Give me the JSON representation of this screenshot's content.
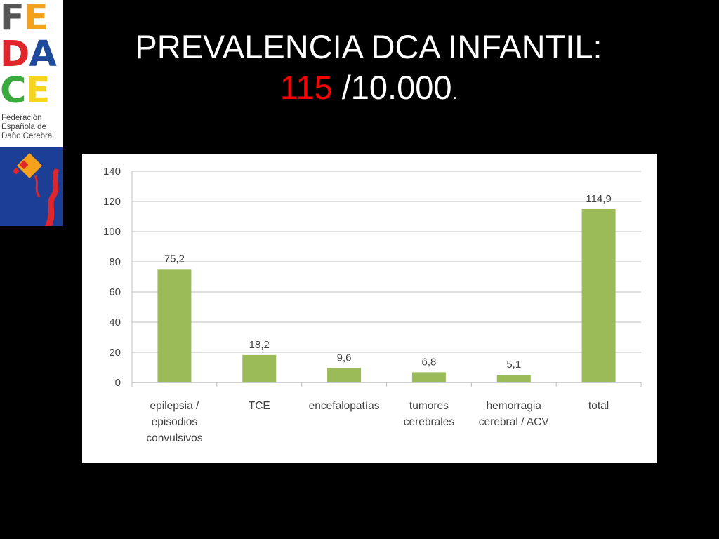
{
  "logo": {
    "letters": [
      [
        {
          "ch": "F",
          "color": "#555555"
        },
        {
          "ch": "E",
          "color": "#f4a21c"
        }
      ],
      [
        {
          "ch": "D",
          "color": "#e0262b"
        },
        {
          "ch": "A",
          "color": "#1e4a9c"
        }
      ],
      [
        {
          "ch": "C",
          "color": "#3aaa3f"
        },
        {
          "ch": "E",
          "color": "#f5d61c"
        }
      ]
    ],
    "subtitle": [
      "Federación",
      "Española de",
      "Daño Cerebral"
    ]
  },
  "title": {
    "line1": "PREVALENCIA DCA INFANTIL:",
    "highlight": "115",
    "line2_rest": " /10.000",
    "line2_end": "."
  },
  "colors": {
    "bar": "#9bbb59",
    "grid": "#bfbfbf",
    "text": "#404040",
    "highlight": "#ff0000"
  },
  "chart_data": {
    "type": "bar",
    "categories": [
      [
        "epilepsia /",
        "episodios",
        "convulsivos"
      ],
      [
        "TCE"
      ],
      [
        "encefalopatías"
      ],
      [
        "tumores",
        "cerebrales"
      ],
      [
        "hemorragia",
        "cerebral / ACV"
      ],
      [
        "total"
      ]
    ],
    "values": [
      75.2,
      18.2,
      9.6,
      6.8,
      5.1,
      114.9
    ],
    "data_labels": [
      "75,2",
      "18,2",
      "9,6",
      "6,8",
      "5,1",
      "114,9"
    ],
    "yticks": [
      0,
      20,
      40,
      60,
      80,
      100,
      120,
      140
    ],
    "ylim": [
      0,
      140
    ],
    "grid": true,
    "legend": "none"
  }
}
